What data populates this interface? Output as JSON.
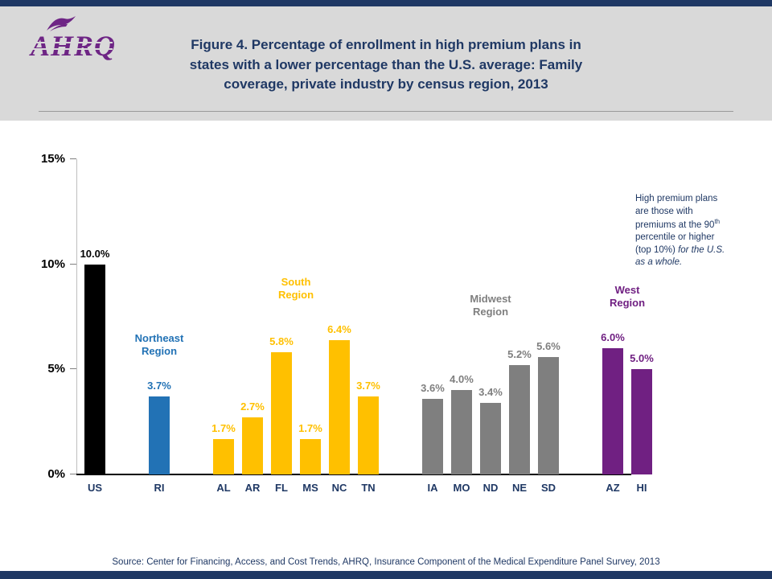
{
  "header": {
    "logo_text": "AHRQ",
    "title_lines": [
      "Figure 4. Percentage of enrollment in high premium plans in",
      "states with a lower percentage than the U.S. average: Family",
      "coverage, private industry by census region, 2013"
    ]
  },
  "annotation": {
    "part1": "High premium plans are those with premiums at the 90",
    "sup": "th",
    "part2": " percentile or higher (top 10%) ",
    "italic": "for the U.S. as a whole."
  },
  "footer": {
    "source": "Source: Center for Financing, Access, and Cost Trends, AHRQ, Insurance Component of the Medical Expenditure Panel Survey, 2013"
  },
  "chart_data": {
    "type": "bar",
    "title": "Percentage of enrollment in high premium plans in states with a lower percentage than the U.S. average: Family coverage, private industry by census region, 2013",
    "xlabel": "",
    "ylabel": "",
    "ylim": [
      0,
      15
    ],
    "yticks": [
      {
        "value": 0,
        "label": "0%"
      },
      {
        "value": 5,
        "label": "5%"
      },
      {
        "value": 10,
        "label": "10%"
      },
      {
        "value": 15,
        "label": "15%"
      }
    ],
    "grid": false,
    "legend": false,
    "groups": [
      {
        "region_lines": [],
        "color": "#000000",
        "bars": [
          {
            "label": "US",
            "value": 10.0
          }
        ]
      },
      {
        "region_lines": [
          "Northeast",
          "Region"
        ],
        "color": "#2272B5",
        "bars": [
          {
            "label": "RI",
            "value": 3.7
          }
        ]
      },
      {
        "region_lines": [
          "South",
          "Region"
        ],
        "color": "#FFC000",
        "bars": [
          {
            "label": "AL",
            "value": 1.7
          },
          {
            "label": "AR",
            "value": 2.7
          },
          {
            "label": "FL",
            "value": 5.8
          },
          {
            "label": "MS",
            "value": 1.7
          },
          {
            "label": "NC",
            "value": 6.4
          },
          {
            "label": "TN",
            "value": 3.7
          }
        ]
      },
      {
        "region_lines": [
          "Midwest",
          "Region"
        ],
        "color": "#7F7F7F",
        "bars": [
          {
            "label": "IA",
            "value": 3.6
          },
          {
            "label": "MO",
            "value": 4.0
          },
          {
            "label": "ND",
            "value": 3.4
          },
          {
            "label": "NE",
            "value": 5.2
          },
          {
            "label": "SD",
            "value": 5.6
          }
        ]
      },
      {
        "region_lines": [
          "West",
          "Region"
        ],
        "color": "#702082",
        "bars": [
          {
            "label": "AZ",
            "value": 6.0
          },
          {
            "label": "HI",
            "value": 5.0
          }
        ]
      }
    ]
  }
}
